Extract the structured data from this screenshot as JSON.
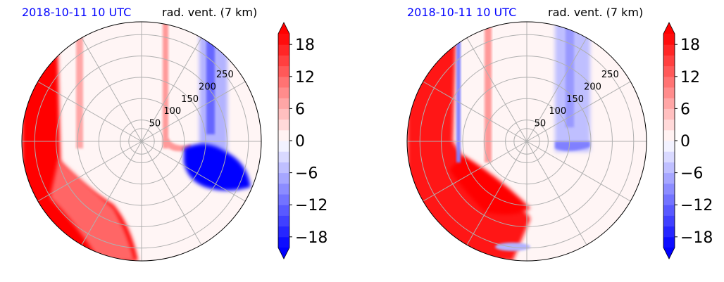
{
  "colors": {
    "negative_max": "#0000ff",
    "zero": "#ffffff",
    "positive_max": "#ff0000",
    "grid": "#b0b0b0",
    "date_title": "#0000ff"
  },
  "chart_data": [
    {
      "type": "heatmap",
      "projection": "polar",
      "title_left": "2018-10-11 10 UTC",
      "title_right": "rad. vent. (7 km)",
      "radial_ticks": [
        "50",
        "100",
        "150",
        "200",
        "250"
      ],
      "radial_values": [
        50,
        100,
        150,
        200,
        250
      ],
      "colorbar": {
        "ticks": [
          "18",
          "12",
          "6",
          "0",
          "−6",
          "−12",
          "−18"
        ],
        "tick_values": [
          18,
          12,
          6,
          0,
          -6,
          -12,
          -18
        ],
        "range": [
          -20,
          20
        ],
        "level_step": 2,
        "extend": "both",
        "cmap": "bwr"
      }
    },
    {
      "type": "heatmap",
      "projection": "polar",
      "title_left": "2018-10-11 10 UTC",
      "title_right": "rad. vent. (7 km)",
      "radial_ticks": [
        "50",
        "100",
        "150",
        "200",
        "250"
      ],
      "radial_values": [
        50,
        100,
        150,
        200,
        250
      ],
      "colorbar": {
        "ticks": [
          "18",
          "12",
          "6",
          "0",
          "−6",
          "−12",
          "−18"
        ],
        "tick_values": [
          18,
          12,
          6,
          0,
          -6,
          -12,
          -18
        ],
        "range": [
          -20,
          20
        ],
        "level_step": 2,
        "extend": "both",
        "cmap": "bwr"
      }
    }
  ]
}
